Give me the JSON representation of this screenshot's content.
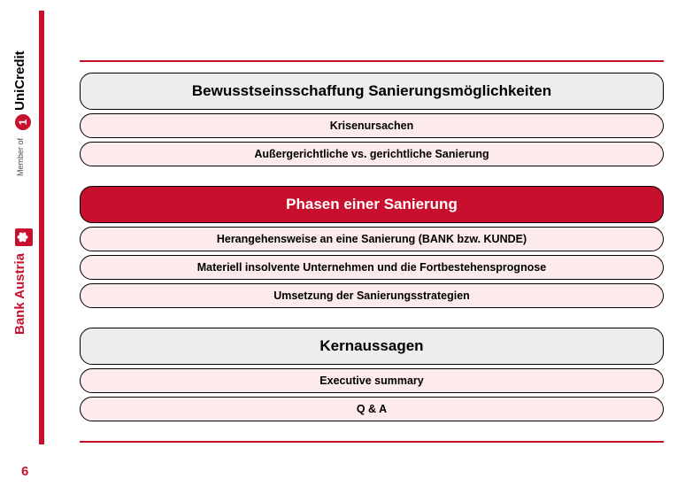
{
  "branding": {
    "bank_austria": "Bank Austria",
    "member_of": "Member of",
    "unicredit": "UniCredit",
    "bank_symbol": "✽",
    "uni_symbol": "1"
  },
  "colors": {
    "accent_red": "#c8102e",
    "light_grey": "#ededed",
    "light_pink": "#fdeaea",
    "white": "#ffffff",
    "black": "#000000"
  },
  "agenda": {
    "groups": [
      {
        "header": {
          "text": "Bewusstseinsschaffung  Sanierungsmöglichkeiten",
          "style": "light-grey"
        },
        "items": [
          {
            "text": "Krisenursachen",
            "style": "light-pink"
          },
          {
            "text": "Außergerichtliche vs. gerichtliche Sanierung",
            "style": "light-pink"
          }
        ]
      },
      {
        "header": {
          "text": "Phasen einer Sanierung",
          "style": "red"
        },
        "items": [
          {
            "text": "Herangehensweise an eine Sanierung (BANK bzw. KUNDE)",
            "style": "light-pink"
          },
          {
            "text": "Materiell insolvente Unternehmen und die Fortbestehensprognose",
            "style": "light-pink"
          },
          {
            "text": "Umsetzung der Sanierungsstrategien",
            "style": "light-pink"
          }
        ]
      },
      {
        "header": {
          "text": "Kernaussagen",
          "style": "light-grey"
        },
        "items": [
          {
            "text": "Executive summary",
            "style": "light-pink"
          },
          {
            "text": "Q & A",
            "style": "light-pink"
          }
        ]
      }
    ]
  },
  "page_number": "6"
}
